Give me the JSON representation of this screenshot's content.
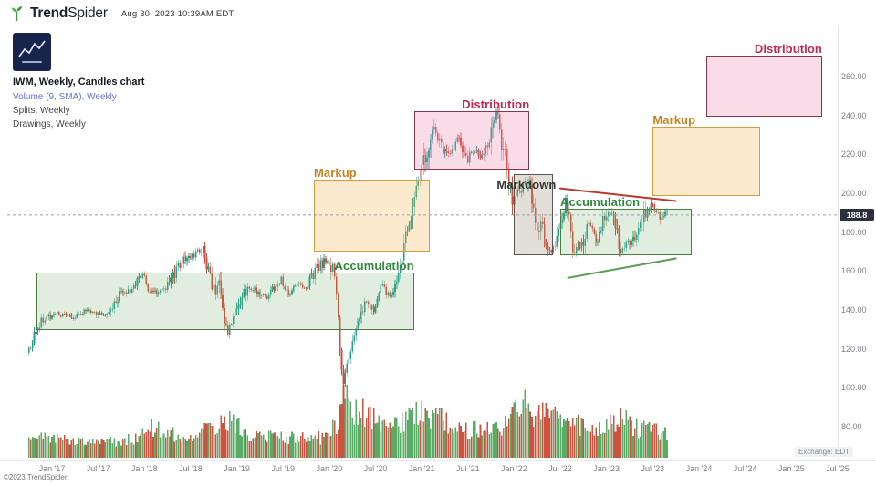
{
  "header": {
    "brand_bold": "Trend",
    "brand_light": "Spider",
    "timestamp": "Aug 30, 2023 10:39AM EDT"
  },
  "legend": {
    "line1": "IWM, Weekly, Candles chart",
    "line2": "Volume (9, SMA), Weekly",
    "line3": "Splits, Weekly",
    "line4": "Drawings, Weekly"
  },
  "footer": {
    "copyright": "©2023 TrendSpider",
    "exchange": "Exchange: EDT"
  },
  "chart_data": {
    "type": "candlestick",
    "symbol": "IWM",
    "timeframe": "Weekly",
    "title": "IWM, Weekly, Candles chart",
    "last_price": 188.8,
    "last_price_label": "188.8",
    "data_start": "2016-10",
    "data_end": "2023-08",
    "y_axis": {
      "ticks": [
        260,
        240,
        220,
        200,
        180,
        160,
        140,
        120,
        100,
        80
      ]
    },
    "x_axis": {
      "ticks": [
        {
          "label": "Jan '17",
          "t": "2017-01"
        },
        {
          "label": "Jul '17",
          "t": "2017-07"
        },
        {
          "label": "Jan '18",
          "t": "2018-01"
        },
        {
          "label": "Jul '18",
          "t": "2018-07"
        },
        {
          "label": "Jan '19",
          "t": "2019-01"
        },
        {
          "label": "Jul '19",
          "t": "2019-07"
        },
        {
          "label": "Jan '20",
          "t": "2020-01"
        },
        {
          "label": "Jul '20",
          "t": "2020-07"
        },
        {
          "label": "Jan '21",
          "t": "2021-01"
        },
        {
          "label": "Jul '21",
          "t": "2021-07"
        },
        {
          "label": "Jan '22",
          "t": "2022-01"
        },
        {
          "label": "Jul '22",
          "t": "2022-07"
        },
        {
          "label": "Jan '23",
          "t": "2023-01"
        },
        {
          "label": "Jul '23",
          "t": "2023-07"
        },
        {
          "label": "Jan '24",
          "t": "2024-01"
        },
        {
          "label": "Jul '24",
          "t": "2024-07"
        },
        {
          "label": "Jan '25",
          "t": "2025-01"
        },
        {
          "label": "Jul '25",
          "t": "2025-07"
        }
      ]
    },
    "price_path": [
      {
        "t": "2016-10",
        "p": 118
      },
      {
        "t": "2016-11",
        "p": 127
      },
      {
        "t": "2016-12",
        "p": 135
      },
      {
        "t": "2017-02",
        "p": 138
      },
      {
        "t": "2017-04",
        "p": 136
      },
      {
        "t": "2017-06",
        "p": 140
      },
      {
        "t": "2017-08",
        "p": 136
      },
      {
        "t": "2017-10",
        "p": 148
      },
      {
        "t": "2017-12",
        "p": 152
      },
      {
        "t": "2018-01",
        "p": 159
      },
      {
        "t": "2018-02",
        "p": 148
      },
      {
        "t": "2018-04",
        "p": 151
      },
      {
        "t": "2018-06",
        "p": 165
      },
      {
        "t": "2018-08",
        "p": 169
      },
      {
        "t": "2018-09",
        "p": 171
      },
      {
        "t": "2018-10",
        "p": 151
      },
      {
        "t": "2018-11",
        "p": 152
      },
      {
        "t": "2018-12",
        "p": 127
      },
      {
        "t": "2019-02",
        "p": 149
      },
      {
        "t": "2019-03",
        "p": 152
      },
      {
        "t": "2019-05",
        "p": 146
      },
      {
        "t": "2019-07",
        "p": 156
      },
      {
        "t": "2019-08",
        "p": 147
      },
      {
        "t": "2019-09",
        "p": 155
      },
      {
        "t": "2019-10",
        "p": 151
      },
      {
        "t": "2019-12",
        "p": 163
      },
      {
        "t": "2020-01",
        "p": 166
      },
      {
        "t": "2020-02",
        "p": 160
      },
      {
        "t": "2020-03",
        "p": 99
      },
      {
        "t": "2020-04",
        "p": 120
      },
      {
        "t": "2020-05",
        "p": 132
      },
      {
        "t": "2020-06",
        "p": 143
      },
      {
        "t": "2020-07",
        "p": 141
      },
      {
        "t": "2020-08",
        "p": 152
      },
      {
        "t": "2020-09",
        "p": 147
      },
      {
        "t": "2020-10",
        "p": 153
      },
      {
        "t": "2020-11",
        "p": 174
      },
      {
        "t": "2020-12",
        "p": 193
      },
      {
        "t": "2021-01",
        "p": 207
      },
      {
        "t": "2021-02",
        "p": 225
      },
      {
        "t": "2021-03",
        "p": 232
      },
      {
        "t": "2021-04",
        "p": 222
      },
      {
        "t": "2021-05",
        "p": 221
      },
      {
        "t": "2021-06",
        "p": 229
      },
      {
        "t": "2021-07",
        "p": 217
      },
      {
        "t": "2021-08",
        "p": 221
      },
      {
        "t": "2021-09",
        "p": 219
      },
      {
        "t": "2021-10",
        "p": 228
      },
      {
        "t": "2021-11",
        "p": 241
      },
      {
        "t": "2021-12",
        "p": 220
      },
      {
        "t": "2022-01",
        "p": 198
      },
      {
        "t": "2022-02",
        "p": 201
      },
      {
        "t": "2022-03",
        "p": 207
      },
      {
        "t": "2022-04",
        "p": 184
      },
      {
        "t": "2022-05",
        "p": 180
      },
      {
        "t": "2022-06",
        "p": 167
      },
      {
        "t": "2022-07",
        "p": 180
      },
      {
        "t": "2022-08",
        "p": 198
      },
      {
        "t": "2022-09",
        "p": 167
      },
      {
        "t": "2022-10",
        "p": 174
      },
      {
        "t": "2022-11",
        "p": 185
      },
      {
        "t": "2022-12",
        "p": 174
      },
      {
        "t": "2023-01",
        "p": 189
      },
      {
        "t": "2023-02",
        "p": 190
      },
      {
        "t": "2023-03",
        "p": 171
      },
      {
        "t": "2023-04",
        "p": 175
      },
      {
        "t": "2023-05",
        "p": 176
      },
      {
        "t": "2023-06",
        "p": 187
      },
      {
        "t": "2023-07",
        "p": 196
      },
      {
        "t": "2023-08",
        "p": 188.8
      }
    ],
    "volume_path": [
      {
        "t": "2016-10",
        "v": 0.35
      },
      {
        "t": "2017-03",
        "v": 0.26
      },
      {
        "t": "2017-09",
        "v": 0.24
      },
      {
        "t": "2017-12",
        "v": 0.3
      },
      {
        "t": "2018-02",
        "v": 0.45
      },
      {
        "t": "2018-06",
        "v": 0.32
      },
      {
        "t": "2018-10",
        "v": 0.48
      },
      {
        "t": "2018-12",
        "v": 0.55
      },
      {
        "t": "2019-03",
        "v": 0.32
      },
      {
        "t": "2019-08",
        "v": 0.3
      },
      {
        "t": "2019-12",
        "v": 0.3
      },
      {
        "t": "2020-02",
        "v": 0.5
      },
      {
        "t": "2020-03",
        "v": 1.0
      },
      {
        "t": "2020-04",
        "v": 0.72
      },
      {
        "t": "2020-06",
        "v": 0.65
      },
      {
        "t": "2020-08",
        "v": 0.45
      },
      {
        "t": "2020-10",
        "v": 0.5
      },
      {
        "t": "2020-11",
        "v": 0.6
      },
      {
        "t": "2021-01",
        "v": 0.7
      },
      {
        "t": "2021-03",
        "v": 0.62
      },
      {
        "t": "2021-06",
        "v": 0.4
      },
      {
        "t": "2021-11",
        "v": 0.45
      },
      {
        "t": "2022-01",
        "v": 0.65
      },
      {
        "t": "2022-02",
        "v": 0.95
      },
      {
        "t": "2022-03",
        "v": 0.6
      },
      {
        "t": "2022-05",
        "v": 0.7
      },
      {
        "t": "2022-06",
        "v": 0.65
      },
      {
        "t": "2022-09",
        "v": 0.5
      },
      {
        "t": "2022-12",
        "v": 0.42
      },
      {
        "t": "2023-03",
        "v": 0.6
      },
      {
        "t": "2023-05",
        "v": 0.45
      },
      {
        "t": "2023-08",
        "v": 0.38
      }
    ],
    "phases": [
      {
        "id": "accumulation-1",
        "kind": "accumulation",
        "label": "Accumulation",
        "t1": "2016-11",
        "t2": "2020-12",
        "p_low": 129.5,
        "p_high": 159,
        "label_pos": "above-right"
      },
      {
        "id": "markup-1",
        "kind": "markup",
        "label": "Markup",
        "t1": "2019-11",
        "t2": "2021-02",
        "p_low": 170,
        "p_high": 207,
        "label_pos": "above-left"
      },
      {
        "id": "distribution-1",
        "kind": "distribution",
        "label": "Distribution",
        "t1": "2020-12",
        "t2": "2022-03",
        "p_low": 212,
        "p_high": 242,
        "label_pos": "above-right"
      },
      {
        "id": "markdown-1",
        "kind": "markdown",
        "label": "Markdown",
        "t1": "2022-01",
        "t2": "2022-06",
        "p_low": 168,
        "p_high": 210,
        "label_pos": "inside-left"
      },
      {
        "id": "accumulation-2",
        "kind": "accumulation",
        "label": "Accumulation",
        "t1": "2022-07",
        "t2": "2023-12",
        "p_low": 168,
        "p_high": 192,
        "label_pos": "above-left"
      },
      {
        "id": "markup-2",
        "kind": "markup",
        "label": "Markup",
        "t1": "2023-07",
        "t2": "2024-09",
        "p_low": 198.5,
        "p_high": 234,
        "label_pos": "above-left"
      },
      {
        "id": "distribution-2",
        "kind": "distribution",
        "label": "Distribution",
        "t1": "2024-02",
        "t2": "2025-05",
        "p_low": 239.5,
        "p_high": 271,
        "label_pos": "above-right"
      }
    ],
    "phase_styles": {
      "accumulation": {
        "fill": "rgba(106,168,94,0.20)",
        "border": "#4e7c41",
        "label": "#2f8a3c"
      },
      "markup": {
        "fill": "rgba(243,172,66,0.26)",
        "border": "#d89a3d",
        "label": "#c8821e"
      },
      "distribution": {
        "fill": "rgba(236,130,172,0.28)",
        "border": "#8a3550",
        "label": "#c2274e"
      },
      "markdown": {
        "fill": "rgba(166,152,134,0.32)",
        "border": "#5a564e",
        "label": "#33362f"
      }
    },
    "trendlines": [
      {
        "id": "resistance",
        "t1": "2022-07",
        "p1": 202.5,
        "t2": "2023-10",
        "p2": 196,
        "color": "#b93a2c"
      },
      {
        "id": "support",
        "t1": "2022-08",
        "p1": 156.5,
        "t2": "2023-10",
        "p2": 166.5,
        "color": "#56a04e"
      }
    ],
    "colors": {
      "up": "#1fa18e",
      "down": "#d34b3a",
      "vol_up": "#4ba558",
      "vol_down": "#c9432f",
      "dashed_line": "#9aa0a8",
      "axis_text": "#7b7f88",
      "badge_bg": "#2b303c",
      "separator": "#e7e8ec",
      "brand_green": "#3f9e3f"
    }
  }
}
